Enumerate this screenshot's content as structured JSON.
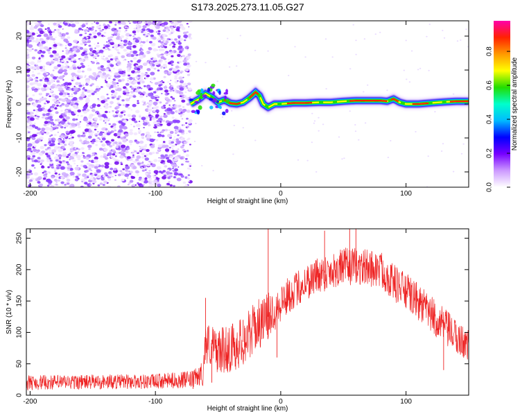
{
  "title": "S173.2025.273.11.05.G27",
  "chart_data": [
    {
      "type": "heatmap",
      "name": "spectrogram",
      "xlabel": "Height of straight line (km)",
      "ylabel": "Frequency (Hz)",
      "xlim": [
        -203,
        150
      ],
      "ylim": [
        -24.5,
        24.5
      ],
      "xticks": [
        -200,
        -100,
        0,
        100
      ],
      "yticks": [
        -20,
        -10,
        0,
        10,
        20
      ],
      "noise_region_x": [
        -203,
        -72
      ],
      "signal_trace": {
        "x": [
          -72,
          -65,
          -60,
          -55,
          -50,
          -45,
          -40,
          -35,
          -30,
          -25,
          -20,
          -17,
          -14,
          -10,
          -5,
          0,
          10,
          20,
          30,
          40,
          50,
          60,
          70,
          80,
          85,
          90,
          95,
          100,
          110,
          120,
          130,
          140,
          150
        ],
        "y": [
          0,
          1.5,
          3,
          2,
          0.5,
          1.2,
          0.2,
          0,
          0.5,
          1.8,
          3.5,
          2.5,
          0,
          -1,
          0,
          0,
          0.3,
          0.3,
          0.5,
          0.5,
          0.8,
          1.0,
          1.0,
          1.0,
          0.8,
          1.5,
          0.5,
          0,
          0,
          0.3,
          0.6,
          0.8,
          0.8
        ]
      },
      "colorbar": {
        "label": "Normalized spectral amplitude",
        "ticks": [
          0.0,
          0.2,
          0.4,
          0.6,
          0.8
        ],
        "tick_labels": [
          "0.0",
          "0.2",
          "0.4",
          "0.6",
          "0.8"
        ],
        "range": [
          0,
          0.98
        ],
        "colors": [
          "#ffffff",
          "#cc99ff",
          "#7700ff",
          "#0000ff",
          "#00bbff",
          "#00ffcc",
          "#22dd00",
          "#ffff00",
          "#ff9900",
          "#ff2200",
          "#ff00aa"
        ]
      }
    },
    {
      "type": "line",
      "name": "snr",
      "xlabel": "Height of straight line (km)",
      "ylabel": "SNR (10 * v/v)",
      "xlim": [
        -203,
        150
      ],
      "ylim": [
        0,
        265
      ],
      "xticks": [
        -200,
        -100,
        0,
        100
      ],
      "yticks": [
        0,
        50,
        100,
        150,
        200,
        250
      ],
      "color": "#ee2222",
      "envelope": {
        "x": [
          -203,
          -150,
          -100,
          -70,
          -62,
          -60,
          -50,
          -40,
          -30,
          -20,
          -10,
          0,
          10,
          20,
          30,
          40,
          50,
          60,
          70,
          80,
          90,
          100,
          110,
          120,
          130,
          140,
          150
        ],
        "mean": [
          20,
          21,
          22,
          25,
          35,
          85,
          70,
          75,
          85,
          110,
          125,
          148,
          165,
          180,
          192,
          198,
          205,
          205,
          203,
          200,
          180,
          165,
          148,
          128,
          110,
          92,
          80
        ],
        "spread": [
          12,
          12,
          12,
          14,
          20,
          35,
          35,
          40,
          40,
          40,
          38,
          32,
          28,
          30,
          30,
          30,
          30,
          30,
          30,
          30,
          30,
          30,
          30,
          30,
          30,
          28,
          25
        ]
      },
      "spikes": [
        {
          "x": -70,
          "y": 10
        },
        {
          "x": -60,
          "y": 155
        },
        {
          "x": -55,
          "y": 20
        },
        {
          "x": -30,
          "y": 120
        },
        {
          "x": -10,
          "y": 265
        },
        {
          "x": -3,
          "y": 60
        },
        {
          "x": 35,
          "y": 262
        },
        {
          "x": 55,
          "y": 265
        },
        {
          "x": 60,
          "y": 265
        },
        {
          "x": 130,
          "y": 40
        }
      ]
    }
  ]
}
